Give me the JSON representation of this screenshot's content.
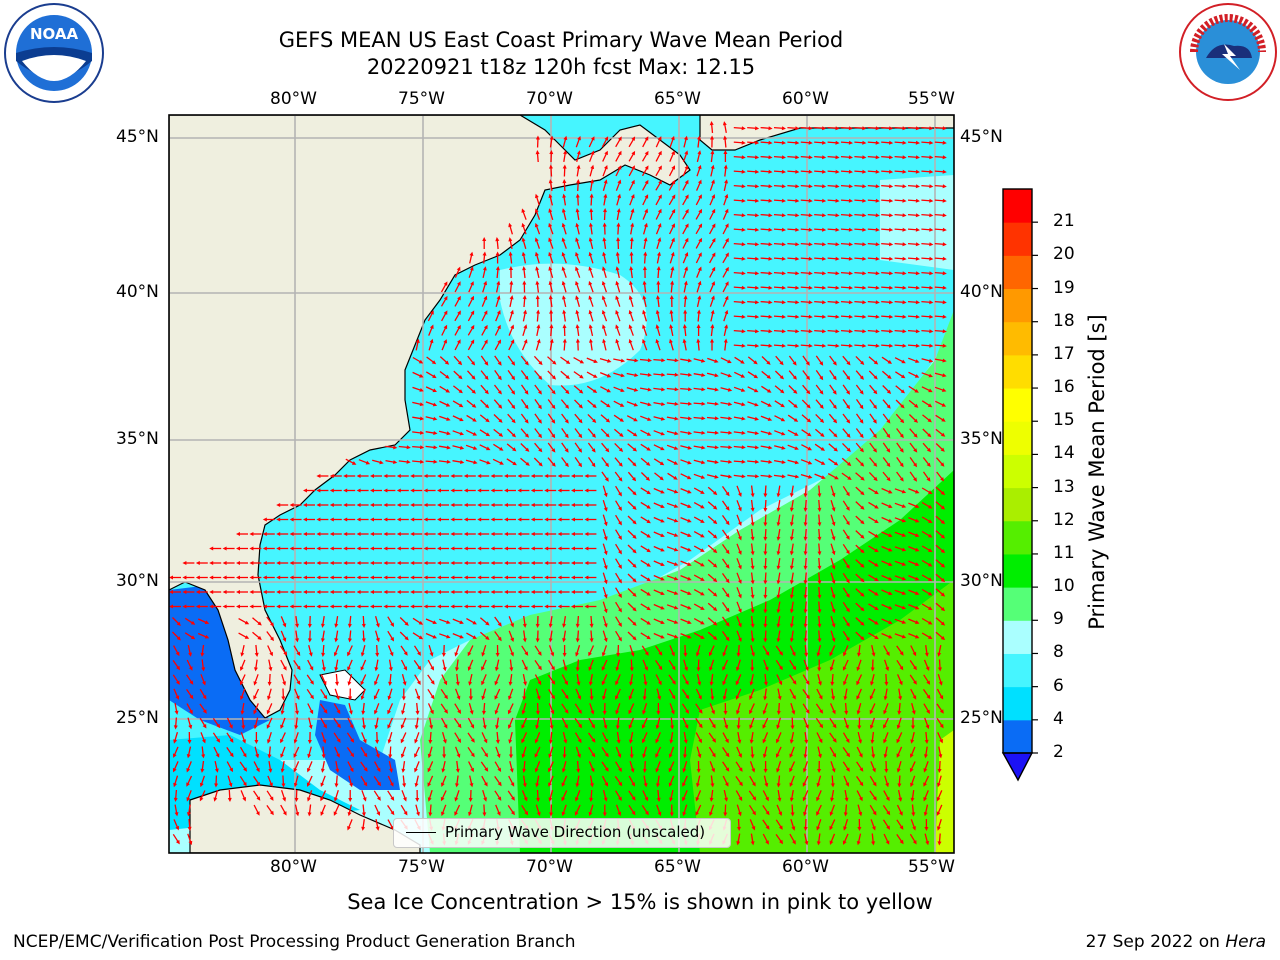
{
  "header": {
    "title_line1": "GEFS MEAN US East Coast Primary Wave Mean Period",
    "title_line2": "20220921 t18z 120h fcst   Max: 12.15"
  },
  "map": {
    "lon_labels": [
      "80°W",
      "75°W",
      "70°W",
      "65°W",
      "60°W",
      "55°W"
    ],
    "lat_labels": [
      "45°N",
      "40°N",
      "35°N",
      "30°N",
      "25°N"
    ],
    "lon_range": [
      -85,
      -54
    ],
    "lat_range": [
      20.5,
      46
    ],
    "legend_text": "Primary Wave Direction (unscaled)",
    "arrow_color": "#ff0000",
    "land_color": "#efefdf"
  },
  "colorbar": {
    "label": "Primary Wave Mean Period [s]",
    "ticks": [
      "2",
      "4",
      "6",
      "8",
      "9",
      "10",
      "11",
      "12",
      "13",
      "14",
      "15",
      "16",
      "17",
      "18",
      "19",
      "20",
      "21"
    ],
    "colors": [
      "#0a6cf5",
      "#00e0ff",
      "#46f5ff",
      "#aaffff",
      "#55ff77",
      "#00ee00",
      "#55ee00",
      "#aaee00",
      "#ccff00",
      "#eeff00",
      "#ffff00",
      "#ffdd00",
      "#ffbb00",
      "#ff9900",
      "#ff6600",
      "#ff3300",
      "#ff0000"
    ],
    "extend_color": "#1c12f5"
  },
  "chart_data": {
    "type": "heatmap",
    "title": "GEFS MEAN US East Coast Primary Wave Mean Period",
    "subtitle": "20220921 t18z 120h fcst   Max: 12.15",
    "variable": "Primary Wave Mean Period [s]",
    "max": 12.15,
    "xlim": [
      -85,
      -54
    ],
    "ylim": [
      20.5,
      46
    ],
    "colorbar_levels": [
      2,
      4,
      6,
      8,
      9,
      10,
      11,
      12,
      13,
      14,
      15,
      16,
      17,
      18,
      19,
      20,
      21
    ]
  },
  "notes": {
    "sea_ice": "Sea Ice Concentration > 15% is shown in pink to yellow"
  },
  "footer": {
    "left": "NCEP/EMC/Verification Post Processing Product Generation Branch",
    "right_date": "27 Sep 2022 on ",
    "right_machine": "Hera"
  },
  "logos": {
    "noaa_text": "NOAA",
    "nws_text": "NATIONAL WEATHER SERVICE"
  }
}
